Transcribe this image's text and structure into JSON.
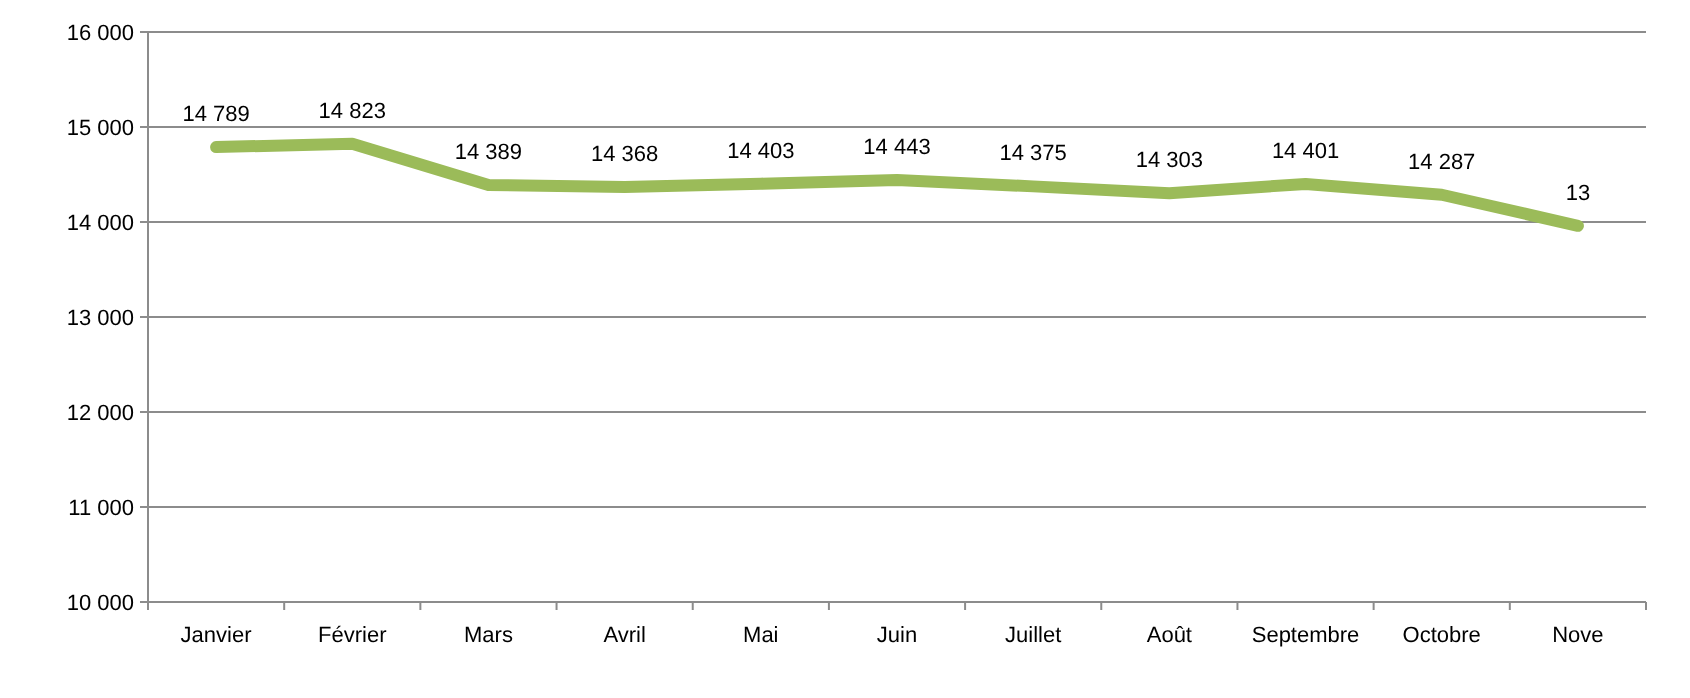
{
  "chart_data": {
    "type": "line",
    "categories": [
      "Janvier",
      "Février",
      "Mars",
      "Avril",
      "Mai",
      "Juin",
      "Juillet",
      "Août",
      "Septembre",
      "Octobre",
      "Nove"
    ],
    "series": [
      {
        "color": "#9bbb59",
        "values": [
          14789,
          14823,
          14389,
          14368,
          14403,
          14443,
          14375,
          14303,
          14401,
          14287,
          13960
        ],
        "value_labels": [
          "14 789",
          "14 823",
          "14 389",
          "14 368",
          "14 403",
          "14 443",
          "14 375",
          "14 303",
          "14 401",
          "14 287",
          null
        ]
      }
    ],
    "annotations": [
      {
        "text": "13",
        "x": "Nove",
        "y": 13960
      }
    ],
    "ylim": [
      10000,
      16000
    ],
    "yticks": [
      {
        "value": 10000,
        "label": "10 000"
      },
      {
        "value": 11000,
        "label": "11 000"
      },
      {
        "value": 12000,
        "label": "12 000"
      },
      {
        "value": 13000,
        "label": "13 000"
      },
      {
        "value": 14000,
        "label": "14 000"
      },
      {
        "value": 15000,
        "label": "15 000"
      },
      {
        "value": 16000,
        "label": "16 000"
      }
    ],
    "grid": "y",
    "marker": "none",
    "line_style": "solid"
  }
}
